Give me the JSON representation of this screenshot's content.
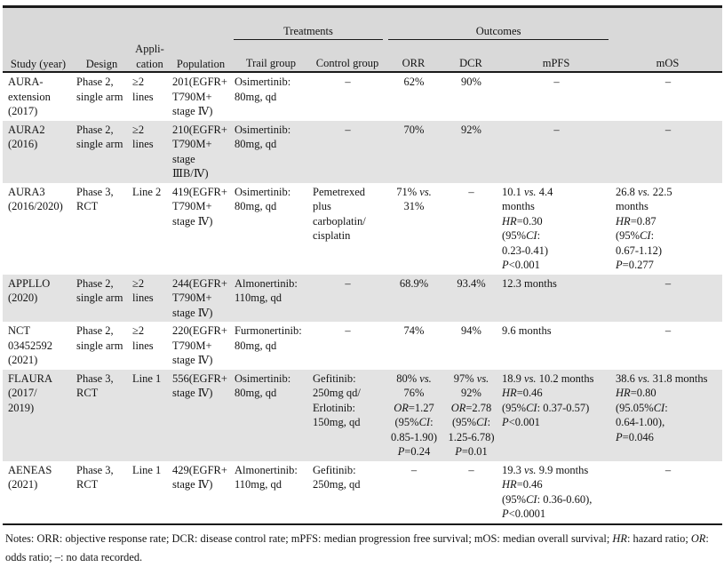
{
  "dash": "–",
  "italic_tokens": [
    "vs.",
    "HR",
    "OR",
    "CI",
    "P"
  ],
  "colors": {
    "header_bg": "#d9d9d9",
    "shaded_row_bg": "#e3e3e3",
    "rule": "#1a1a1a",
    "text": "#141414"
  },
  "header": {
    "study": "Study (year)",
    "design": "Design",
    "application": "Appli-\ncation",
    "population": "Population",
    "treatments": "Treatments",
    "trail_group": "Trail group",
    "control_group": "Control group",
    "outcomes": "Outcomes",
    "orr": "ORR",
    "dcr": "DCR",
    "mpfs": "mPFS",
    "mos": "mOS"
  },
  "rows": [
    {
      "study": "AURA-\nextension\n(2017)",
      "design": "Phase 2,\nsingle arm",
      "application": "≥2\nlines",
      "population": "201(EGFR+\nT790M+\nstage Ⅳ)",
      "trail": "Osimertinib:\n80mg, qd",
      "control": "–",
      "orr": "62%",
      "dcr": "90%",
      "mpfs": "–",
      "mos": "–"
    },
    {
      "study": "AURA2\n(2016)",
      "design": "Phase 2,\nsingle arm",
      "application": "≥2\nlines",
      "population": "210(EGFR+\nT790M+\nstage\nⅢB/Ⅳ)",
      "trail": "Osimertinib:\n80mg, qd",
      "control": "–",
      "orr": "70%",
      "dcr": "92%",
      "mpfs": "–",
      "mos": "–"
    },
    {
      "study": "AURA3\n(2016/2020)",
      "design": "Phase 3,\nRCT",
      "application": "Line 2",
      "population": "419(EGFR+\nT790M+\nstage Ⅳ)",
      "trail": "Osimertinib:\n80mg, qd",
      "control": "Pemetrexed\nplus\ncarboplatin/\ncisplatin",
      "orr": "71% vs.\n31%",
      "dcr": "–",
      "mpfs": "10.1 vs. 4.4\nmonths\nHR=0.30\n(95%CI:\n0.23-0.41)\nP<0.001",
      "mos": "26.8 vs. 22.5\nmonths\nHR=0.87\n(95%CI:\n0.67-1.12)\nP=0.277"
    },
    {
      "study": "APPLLO\n(2020)",
      "design": "Phase 2,\nsingle arm",
      "application": "≥2\nlines",
      "population": "244(EGFR+\nT790M+\nstage Ⅳ)",
      "trail": "Almonertinib:\n110mg, qd",
      "control": "–",
      "orr": "68.9%",
      "dcr": "93.4%",
      "mpfs": "12.3 months",
      "mos": "–"
    },
    {
      "study": "NCT\n03452592\n(2021)",
      "design": "Phase 2,\nsingle arm",
      "application": "≥2\nlines",
      "population": "220(EGFR+\nT790M+\nstage Ⅳ)",
      "trail": "Furmonertinib:\n80mg, qd",
      "control": "–",
      "orr": "74%",
      "dcr": "94%",
      "mpfs": "9.6 months",
      "mos": "–"
    },
    {
      "study": "FLAURA\n(2017/\n2019)",
      "design": "Phase 3,\nRCT",
      "application": "Line 1",
      "population": "556(EGFR+\nstage Ⅳ)",
      "trail": "Osimertinib:\n80mg, qd",
      "control": "Gefitinib:\n250mg qd/\nErlotinib:\n150mg, qd",
      "orr": "80% vs.\n76%\nOR=1.27\n(95%CI:\n0.85-1.90)\nP=0.24",
      "dcr": "97% vs.\n92%\nOR=2.78\n(95%CI:\n1.25-6.78)\nP=0.01",
      "mpfs": "18.9 vs. 10.2 months\nHR=0.46\n(95%CI: 0.37-0.57)\nP<0.001",
      "mos": "38.6 vs. 31.8 months\nHR=0.80\n(95.05%CI:\n0.64-1.00),\nP=0.046"
    },
    {
      "study": "AENEAS\n(2021)",
      "design": "Phase 3,\nRCT",
      "application": "Line 1",
      "population": "429(EGFR+\nstage Ⅳ)",
      "trail": "Almonertinib:\n110mg, qd",
      "control": "Gefitinib:\n250mg, qd",
      "orr": "–",
      "dcr": "–",
      "mpfs": "19.3 vs. 9.9 months\nHR=0.46\n(95%CI: 0.36-0.60),\nP<0.0001",
      "mos": "–"
    }
  ],
  "notes": "Notes: ORR: objective response rate; DCR: disease control rate; mPFS: median progression free survival; mOS: median overall survival; HR: hazard ratio; OR: odds ratio; –: no data recorded."
}
